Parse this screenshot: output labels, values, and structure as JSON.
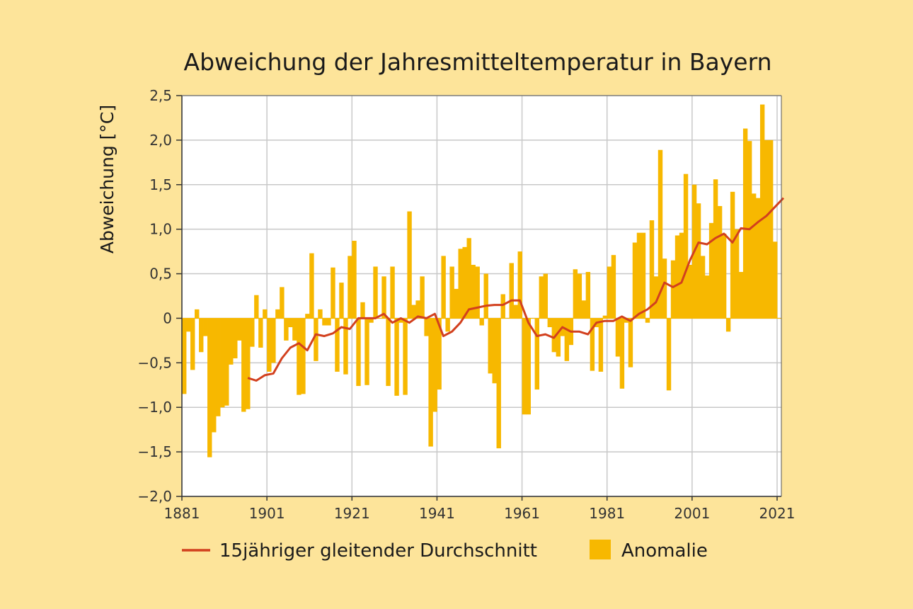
{
  "chart_data": {
    "type": "bar",
    "title": "Abweichung der Jahresmitteltemperatur in Bayern",
    "xlabel": "",
    "ylabel": "Abweichung [°C]",
    "ylim": [
      -2.0,
      2.5
    ],
    "xlim": [
      1881,
      2022
    ],
    "yticks": [
      2.5,
      2.0,
      1.5,
      1.0,
      0.5,
      0,
      -0.5,
      -1.0,
      -1.5,
      -2.0
    ],
    "ytick_labels": [
      "2,5",
      "2,0",
      "1,5",
      "1,0",
      "0,5",
      "0",
      "−0,5",
      "−1,0",
      "−1,5",
      "−2,0"
    ],
    "xticks": [
      1881,
      1901,
      1921,
      1941,
      1961,
      1981,
      2001,
      2021
    ],
    "xtick_labels": [
      "1881",
      "1901",
      "1921",
      "1941",
      "1961",
      "1981",
      "2001",
      "2021"
    ],
    "grid": true,
    "legend": {
      "placement": "bottom"
    },
    "colors": {
      "bars": "#f7b800",
      "line": "#d2401e",
      "grid": "#c8c8c8",
      "background": "#fde49a",
      "plot_bg": "#ffffff"
    },
    "series": [
      {
        "name": "Anomalie",
        "type": "bar",
        "start_year": 1881,
        "values": [
          -0.85,
          -0.15,
          -0.58,
          0.1,
          -0.38,
          -0.2,
          -1.56,
          -1.28,
          -1.1,
          -1.0,
          -0.98,
          -0.52,
          -0.45,
          -0.25,
          -1.05,
          -1.02,
          -0.32,
          0.26,
          -0.33,
          0.1,
          -0.6,
          -0.5,
          0.1,
          0.35,
          -0.25,
          -0.1,
          -0.25,
          -0.86,
          -0.85,
          0.05,
          0.73,
          -0.48,
          0.1,
          -0.08,
          -0.08,
          0.57,
          -0.6,
          0.4,
          -0.63,
          0.7,
          0.87,
          -0.76,
          0.18,
          -0.75,
          -0.05,
          0.58,
          0.0,
          0.47,
          -0.76,
          0.58,
          -0.87,
          -0.05,
          -0.86,
          1.2,
          0.15,
          0.2,
          0.47,
          -0.2,
          -1.44,
          -1.05,
          -0.8,
          0.7,
          -0.15,
          0.58,
          0.33,
          0.78,
          0.8,
          0.9,
          0.6,
          0.58,
          -0.08,
          0.5,
          -0.62,
          -0.73,
          -1.46,
          0.27,
          0.0,
          0.62,
          0.15,
          0.75,
          -1.08,
          -1.08,
          0.0,
          -0.8,
          0.47,
          0.5,
          -0.1,
          -0.38,
          -0.43,
          -0.2,
          -0.48,
          -0.3,
          0.55,
          0.5,
          0.2,
          0.52,
          -0.59,
          -0.1,
          -0.6,
          0.03,
          0.58,
          0.71,
          -0.43,
          -0.79,
          -0.05,
          -0.55,
          0.85,
          0.96,
          0.96,
          -0.05,
          1.1,
          0.47,
          1.89,
          0.67,
          -0.81,
          0.65,
          0.93,
          0.96,
          1.62,
          0.6,
          1.5,
          1.29,
          0.7,
          0.48,
          1.07,
          1.56,
          1.26,
          0.95,
          -0.15,
          1.42,
          1.0,
          0.52,
          2.13,
          1.99,
          1.4,
          1.35,
          2.4,
          2.0,
          2.0,
          0.86
        ]
      },
      {
        "name": "15jähriger gleitender Durchschnitt",
        "type": "line",
        "x": [
          1896,
          1898,
          1900,
          1902,
          1904,
          1906,
          1908,
          1910,
          1912,
          1914,
          1916,
          1918,
          1920,
          1922,
          1924,
          1926,
          1928,
          1930,
          1932,
          1934,
          1936,
          1938,
          1940,
          1942,
          1944,
          1946,
          1948,
          1950,
          1952,
          1954,
          1956,
          1958,
          1960,
          1962,
          1964,
          1966,
          1968,
          1970,
          1972,
          1974,
          1976,
          1978,
          1980,
          1982,
          1984,
          1986,
          1988,
          1990,
          1992,
          1994,
          1996,
          1998,
          2000,
          2002,
          2004,
          2006,
          2008,
          2010,
          2012,
          2014,
          2016,
          2018,
          2020,
          2022
        ],
        "y": [
          -0.67,
          -0.7,
          -0.64,
          -0.62,
          -0.45,
          -0.33,
          -0.28,
          -0.36,
          -0.18,
          -0.2,
          -0.17,
          -0.1,
          -0.12,
          0.0,
          0.0,
          0.0,
          0.05,
          -0.05,
          0.0,
          -0.05,
          0.02,
          0.0,
          0.05,
          -0.2,
          -0.15,
          -0.05,
          0.1,
          0.12,
          0.14,
          0.15,
          0.15,
          0.2,
          0.2,
          -0.05,
          -0.2,
          -0.18,
          -0.22,
          -0.1,
          -0.15,
          -0.15,
          -0.18,
          -0.05,
          -0.03,
          -0.03,
          0.02,
          -0.03,
          0.05,
          0.1,
          0.18,
          0.4,
          0.35,
          0.4,
          0.65,
          0.85,
          0.83,
          0.9,
          0.95,
          0.85,
          1.01,
          1.0,
          1.08,
          1.15,
          1.25,
          1.35
        ]
      }
    ]
  }
}
